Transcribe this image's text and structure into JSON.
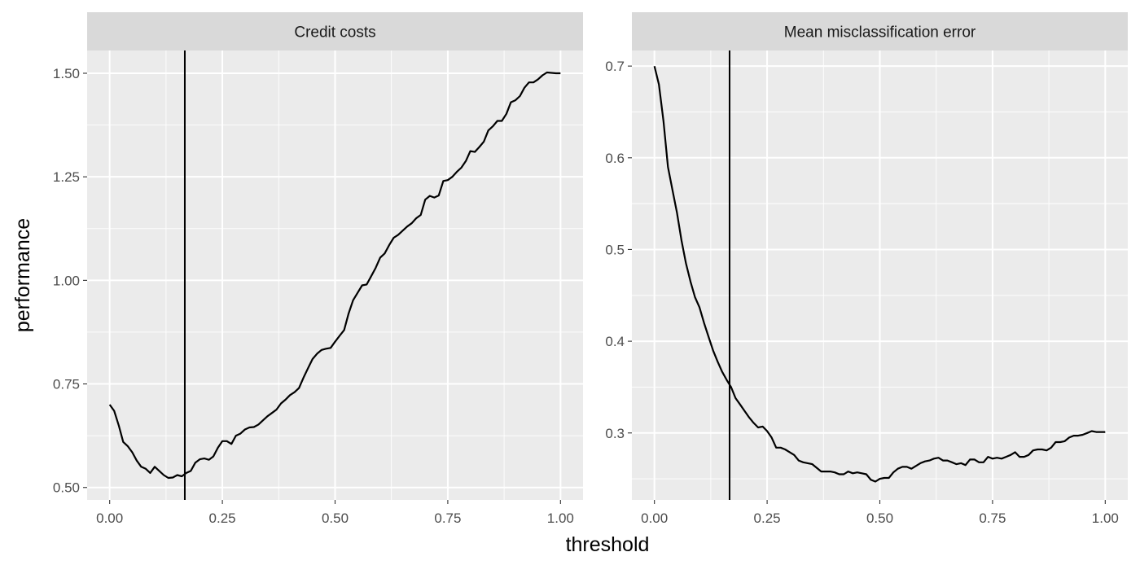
{
  "chart_data": {
    "type": "line",
    "xlabel": "threshold",
    "ylabel": "performance",
    "vline_x": 0.1667,
    "grid": true,
    "colors": {
      "panel_bg": "#EBEBEB",
      "strip_bg": "#D9D9D9",
      "grid": "#FFFFFF",
      "line": "#000000",
      "tick_text": "#4D4D4D"
    },
    "panels": [
      {
        "title": "Credit costs",
        "xlim": [
          -0.05,
          1.05
        ],
        "ylim": [
          0.47,
          1.555
        ],
        "x_ticks": [
          0,
          0.25,
          0.5,
          0.75,
          1
        ],
        "x_tick_labels": [
          "0.00",
          "0.25",
          "0.50",
          "0.75",
          "1.00"
        ],
        "y_ticks": [
          0.5,
          0.75,
          1.0,
          1.25,
          1.5
        ],
        "y_tick_labels": [
          "0.50",
          "0.75",
          "1.00",
          "1.25",
          "1.50"
        ],
        "x": [
          0.0,
          0.01,
          0.02,
          0.03,
          0.04,
          0.05,
          0.06,
          0.07,
          0.08,
          0.09,
          0.1,
          0.11,
          0.12,
          0.13,
          0.14,
          0.15,
          0.16,
          0.17,
          0.18,
          0.19,
          0.2,
          0.21,
          0.22,
          0.23,
          0.24,
          0.25,
          0.26,
          0.27,
          0.28,
          0.29,
          0.3,
          0.31,
          0.32,
          0.33,
          0.34,
          0.35,
          0.36,
          0.37,
          0.38,
          0.39,
          0.4,
          0.41,
          0.42,
          0.43,
          0.44,
          0.45,
          0.46,
          0.47,
          0.48,
          0.49,
          0.5,
          0.51,
          0.52,
          0.53,
          0.54,
          0.55,
          0.56,
          0.57,
          0.58,
          0.59,
          0.6,
          0.61,
          0.62,
          0.63,
          0.64,
          0.65,
          0.66,
          0.67,
          0.68,
          0.69,
          0.7,
          0.71,
          0.72,
          0.73,
          0.74,
          0.75,
          0.76,
          0.77,
          0.78,
          0.79,
          0.8,
          0.81,
          0.82,
          0.83,
          0.84,
          0.85,
          0.86,
          0.87,
          0.88,
          0.89,
          0.9,
          0.91,
          0.92,
          0.93,
          0.94,
          0.95,
          0.96,
          0.97,
          0.98,
          0.99,
          1.0
        ],
        "y": [
          0.7,
          0.685,
          0.65,
          0.61,
          0.6,
          0.585,
          0.565,
          0.55,
          0.545,
          0.535,
          0.55,
          0.54,
          0.53,
          0.523,
          0.524,
          0.53,
          0.527,
          0.535,
          0.54,
          0.56,
          0.568,
          0.57,
          0.567,
          0.575,
          0.596,
          0.612,
          0.612,
          0.605,
          0.625,
          0.63,
          0.64,
          0.645,
          0.646,
          0.652,
          0.662,
          0.672,
          0.68,
          0.688,
          0.703,
          0.712,
          0.723,
          0.73,
          0.74,
          0.765,
          0.788,
          0.81,
          0.823,
          0.832,
          0.835,
          0.837,
          0.852,
          0.866,
          0.88,
          0.92,
          0.952,
          0.97,
          0.988,
          0.99,
          1.01,
          1.03,
          1.055,
          1.065,
          1.085,
          1.103,
          1.11,
          1.12,
          1.13,
          1.138,
          1.15,
          1.158,
          1.195,
          1.204,
          1.2,
          1.205,
          1.24,
          1.242,
          1.25,
          1.262,
          1.272,
          1.288,
          1.312,
          1.31,
          1.322,
          1.335,
          1.362,
          1.372,
          1.385,
          1.385,
          1.402,
          1.43,
          1.435,
          1.445,
          1.465,
          1.478,
          1.478,
          1.485,
          1.495,
          1.502,
          1.501,
          1.5,
          1.5
        ]
      },
      {
        "title": "Mean misclassification error",
        "xlim": [
          -0.05,
          1.05
        ],
        "ylim": [
          0.227,
          0.717
        ],
        "x_ticks": [
          0,
          0.25,
          0.5,
          0.75,
          1
        ],
        "x_tick_labels": [
          "0.00",
          "0.25",
          "0.50",
          "0.75",
          "1.00"
        ],
        "y_ticks": [
          0.3,
          0.4,
          0.5,
          0.6,
          0.7
        ],
        "y_tick_labels": [
          "0.3",
          "0.4",
          "0.5",
          "0.6",
          "0.7"
        ],
        "x": [
          0.0,
          0.01,
          0.02,
          0.03,
          0.04,
          0.05,
          0.06,
          0.07,
          0.08,
          0.09,
          0.1,
          0.11,
          0.12,
          0.13,
          0.14,
          0.15,
          0.16,
          0.17,
          0.18,
          0.19,
          0.2,
          0.21,
          0.22,
          0.23,
          0.24,
          0.25,
          0.26,
          0.27,
          0.28,
          0.29,
          0.3,
          0.31,
          0.32,
          0.33,
          0.34,
          0.35,
          0.36,
          0.37,
          0.38,
          0.39,
          0.4,
          0.41,
          0.42,
          0.43,
          0.44,
          0.45,
          0.46,
          0.47,
          0.48,
          0.49,
          0.5,
          0.51,
          0.52,
          0.53,
          0.54,
          0.55,
          0.56,
          0.57,
          0.58,
          0.59,
          0.6,
          0.61,
          0.62,
          0.63,
          0.64,
          0.65,
          0.66,
          0.67,
          0.68,
          0.69,
          0.7,
          0.71,
          0.72,
          0.73,
          0.74,
          0.75,
          0.76,
          0.77,
          0.78,
          0.79,
          0.8,
          0.81,
          0.82,
          0.83,
          0.84,
          0.85,
          0.86,
          0.87,
          0.88,
          0.89,
          0.9,
          0.91,
          0.92,
          0.93,
          0.94,
          0.95,
          0.96,
          0.97,
          0.98,
          0.99,
          1.0
        ],
        "y": [
          0.7,
          0.68,
          0.64,
          0.59,
          0.565,
          0.54,
          0.51,
          0.485,
          0.465,
          0.448,
          0.437,
          0.42,
          0.405,
          0.39,
          0.378,
          0.367,
          0.358,
          0.35,
          0.338,
          0.331,
          0.324,
          0.317,
          0.311,
          0.306,
          0.307,
          0.302,
          0.295,
          0.284,
          0.284,
          0.282,
          0.279,
          0.276,
          0.27,
          0.268,
          0.267,
          0.266,
          0.262,
          0.258,
          0.258,
          0.258,
          0.257,
          0.255,
          0.255,
          0.258,
          0.256,
          0.257,
          0.256,
          0.255,
          0.249,
          0.247,
          0.25,
          0.251,
          0.251,
          0.257,
          0.261,
          0.263,
          0.263,
          0.261,
          0.264,
          0.267,
          0.269,
          0.27,
          0.272,
          0.273,
          0.27,
          0.27,
          0.268,
          0.266,
          0.267,
          0.265,
          0.271,
          0.271,
          0.268,
          0.268,
          0.274,
          0.272,
          0.273,
          0.272,
          0.274,
          0.276,
          0.279,
          0.274,
          0.274,
          0.276,
          0.281,
          0.282,
          0.282,
          0.281,
          0.284,
          0.29,
          0.29,
          0.291,
          0.295,
          0.297,
          0.297,
          0.298,
          0.3,
          0.302,
          0.301,
          0.301,
          0.301
        ]
      }
    ]
  }
}
